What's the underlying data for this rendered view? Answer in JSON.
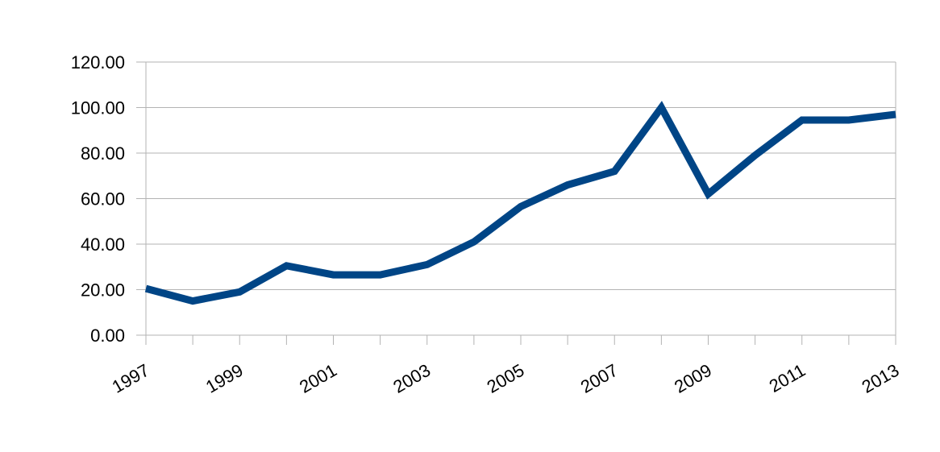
{
  "chart_data": {
    "type": "line",
    "title": "",
    "xlabel": "",
    "ylabel": "",
    "x": [
      1997,
      1998,
      1999,
      2000,
      2001,
      2002,
      2003,
      2004,
      2005,
      2006,
      2007,
      2008,
      2009,
      2010,
      2011,
      2012,
      2013
    ],
    "series": [
      {
        "values": [
          20.5,
          15.0,
          19.0,
          30.5,
          26.5,
          26.5,
          31.0,
          41.0,
          56.5,
          66.0,
          72.0,
          100.0,
          62.0,
          79.0,
          94.5,
          94.5,
          97.0
        ]
      }
    ],
    "ylim": [
      0,
      120
    ],
    "yticks": [
      {
        "value": 0,
        "label": "0.00"
      },
      {
        "value": 20,
        "label": "20.00"
      },
      {
        "value": 40,
        "label": "40.00"
      },
      {
        "value": 60,
        "label": "60.00"
      },
      {
        "value": 80,
        "label": "80.00"
      },
      {
        "value": 100,
        "label": "100.00"
      },
      {
        "value": 120,
        "label": "120.00"
      }
    ],
    "xticks": [
      {
        "value": 1997,
        "label": "1997"
      },
      {
        "value": 1999,
        "label": "1999"
      },
      {
        "value": 2001,
        "label": "2001"
      },
      {
        "value": 2003,
        "label": "2003"
      },
      {
        "value": 2005,
        "label": "2005"
      },
      {
        "value": 2007,
        "label": "2007"
      },
      {
        "value": 2009,
        "label": "2009"
      },
      {
        "value": 2011,
        "label": "2011"
      },
      {
        "value": 2013,
        "label": "2013"
      }
    ],
    "grid": "horizontal",
    "legend": "none",
    "colors": {
      "line": "#004586",
      "grid": "#b3b3b3",
      "axis": "#b3b3b3"
    }
  }
}
